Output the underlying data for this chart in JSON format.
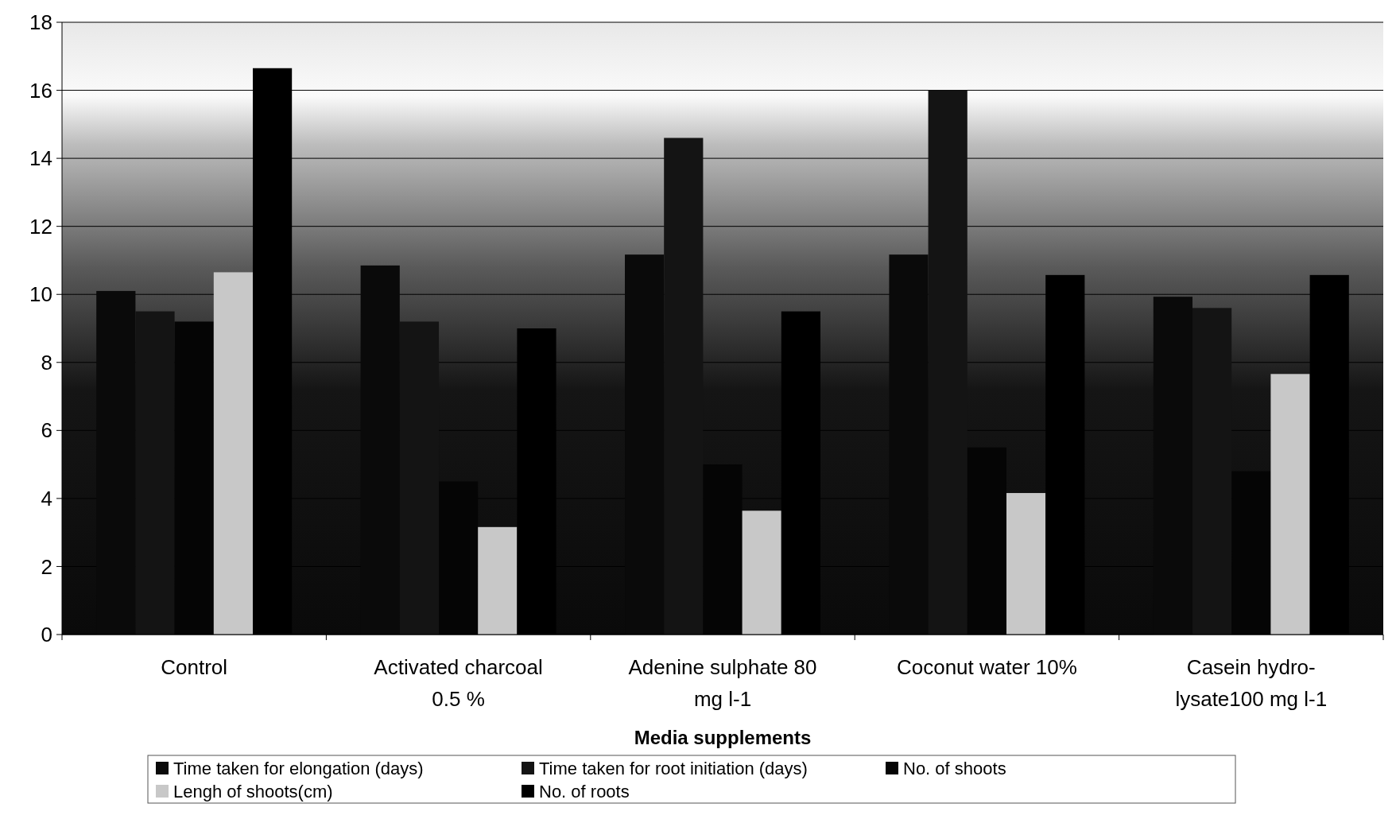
{
  "chart_data": {
    "type": "bar",
    "xlabel": "Media supplements",
    "categories": [
      "Control",
      "Activated charcoal 0.5 %",
      "Adenine sulphate 80 mg l-1",
      "Coconut water 10%",
      "Casein hydro-lysate100 mg l-1"
    ],
    "series": [
      {
        "name": "Time taken for elongation (days)",
        "color": "#0a0a0a",
        "values": [
          10.1,
          10.85,
          11.17,
          11.17,
          9.93
        ]
      },
      {
        "name": "Time taken for root initiation (days)",
        "color": "#141414",
        "values": [
          9.5,
          9.2,
          14.6,
          16.0,
          9.6
        ]
      },
      {
        "name": "No. of shoots",
        "color": "#050505",
        "values": [
          9.2,
          4.5,
          5.0,
          5.5,
          4.8
        ]
      },
      {
        "name": "Lengh of shoots(cm)",
        "color": "#c8c8c8",
        "values": [
          10.65,
          3.16,
          3.64,
          4.16,
          7.66
        ]
      },
      {
        "name": "No. of roots",
        "color": "#000000",
        "values": [
          16.65,
          9.0,
          9.5,
          10.57,
          10.57
        ]
      }
    ],
    "ylim": [
      0,
      18
    ],
    "yticks": [
      0,
      2,
      4,
      6,
      8,
      10,
      12,
      14,
      16,
      18
    ],
    "grid": "y",
    "legend": "bottom"
  }
}
